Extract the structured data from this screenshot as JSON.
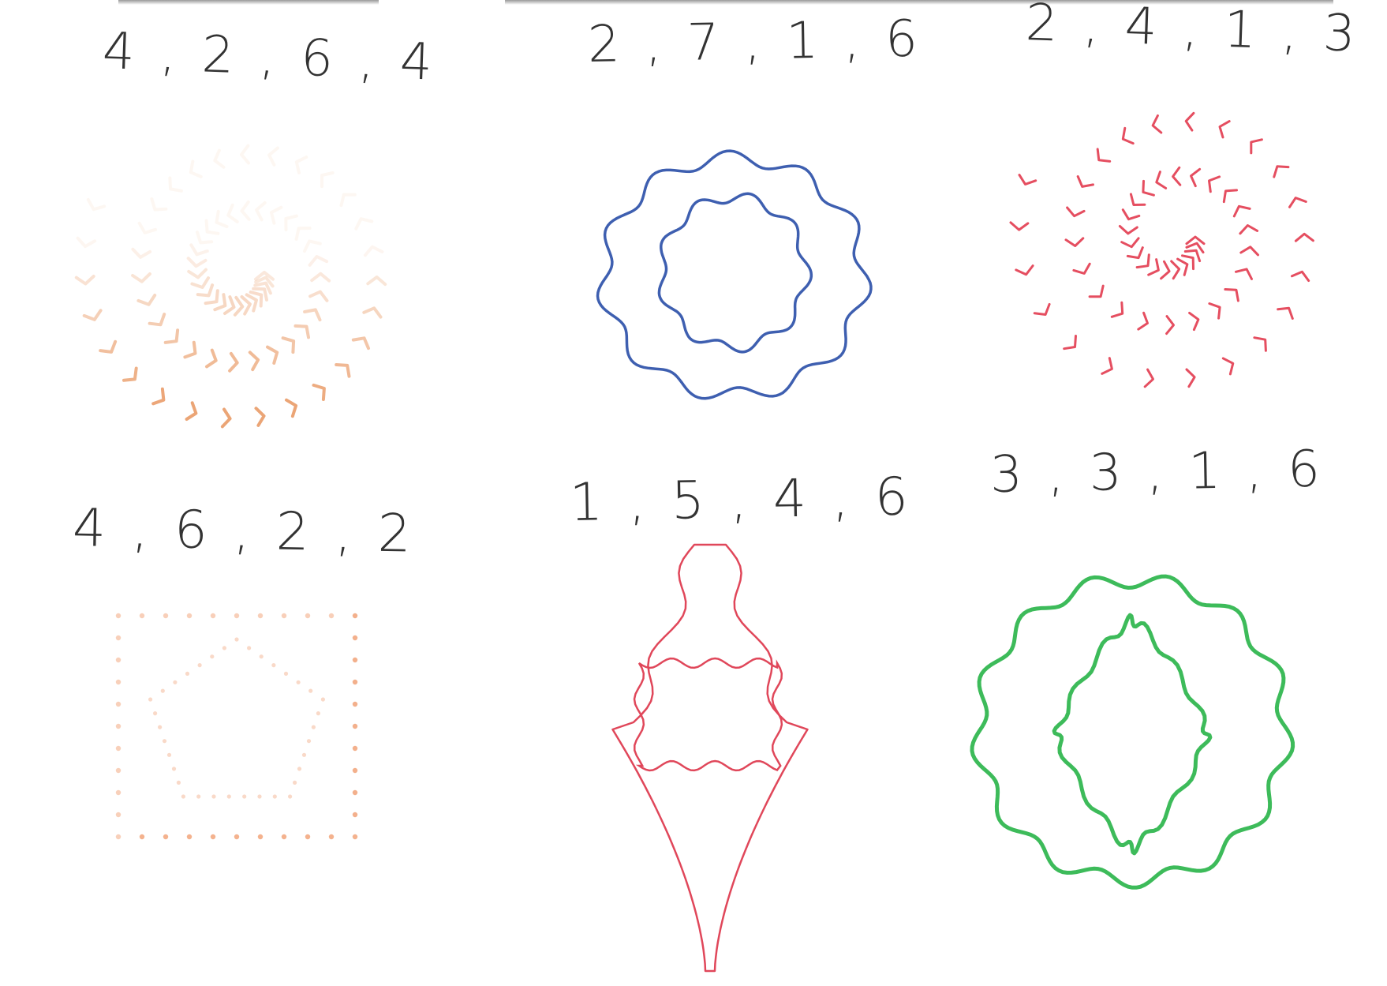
{
  "cards": [
    {
      "id": "c1",
      "label": "4 , 2 , 6 , 4",
      "ink": "#e8955e",
      "style": "chevron-spiral-faded"
    },
    {
      "id": "c2",
      "label": "2 , 7 , 1 , 6",
      "ink": "#3e5fb0",
      "style": "two-wavy-rings"
    },
    {
      "id": "c3",
      "label": "2 , 4 , 1 , 3",
      "ink": "#e23b4f",
      "style": "chevron-spiral"
    },
    {
      "id": "c4",
      "label": "4 , 6 , 2 , 2",
      "ink": "#ef9260",
      "style": "dotted-square-pentagon"
    },
    {
      "id": "c5",
      "label": "1 , 5 , 4 , 6",
      "ink": "#e0475a",
      "style": "ornament-with-rectangle"
    },
    {
      "id": "c6",
      "label": "3 , 3 , 1 , 6",
      "ink": "#3dbb5a",
      "style": "wavy-ring-with-diamond"
    }
  ]
}
